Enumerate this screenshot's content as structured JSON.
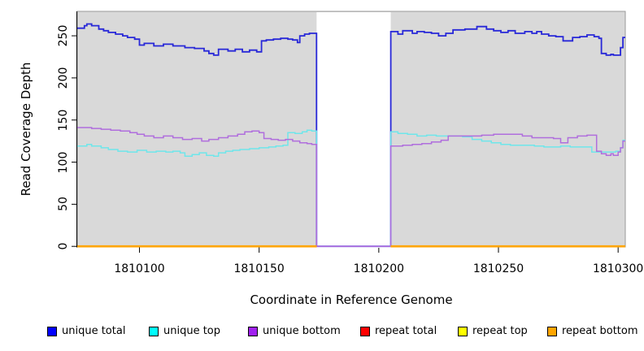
{
  "chart_data": {
    "type": "line",
    "subtype": "step-coverage",
    "xlabel": "Coordinate in Reference Genome",
    "ylabel": "Read Coverage Depth",
    "xlim": [
      1810074,
      1810303
    ],
    "ylim": [
      0,
      279
    ],
    "x_ticks": [
      1810100,
      1810150,
      1810200,
      1810250,
      1810300
    ],
    "y_ticks": [
      0,
      50,
      100,
      150,
      200,
      250
    ],
    "grid": false,
    "plot_background": "#d9d9d9",
    "plot_border_color": "#999999",
    "no_data_gap": {
      "from": 1810174,
      "to": 1810205,
      "fill": "#ffffff"
    },
    "legend_position": "bottom",
    "legend": [
      {
        "label": "unique total",
        "color": "#0000ff"
      },
      {
        "label": "unique top",
        "color": "#00ffff"
      },
      {
        "label": "unique bottom",
        "color": "#a020f0"
      },
      {
        "label": "repeat total",
        "color": "#ff0000"
      },
      {
        "label": "repeat top",
        "color": "#ffff00"
      },
      {
        "label": "repeat bottom",
        "color": "#ffa500"
      }
    ],
    "series": [
      {
        "name": "unique total",
        "color": "#2828d8",
        "width": 1.8,
        "step_points": [
          [
            1810074,
            259
          ],
          [
            1810077,
            262
          ],
          [
            1810078,
            264
          ],
          [
            1810080,
            262
          ],
          [
            1810083,
            258
          ],
          [
            1810085,
            256
          ],
          [
            1810087,
            254
          ],
          [
            1810090,
            252
          ],
          [
            1810093,
            250
          ],
          [
            1810095,
            248
          ],
          [
            1810098,
            246
          ],
          [
            1810100,
            239
          ],
          [
            1810102,
            241
          ],
          [
            1810106,
            238
          ],
          [
            1810110,
            240
          ],
          [
            1810114,
            238
          ],
          [
            1810119,
            236
          ],
          [
            1810123,
            235
          ],
          [
            1810127,
            232
          ],
          [
            1810129,
            229
          ],
          [
            1810131,
            227
          ],
          [
            1810133,
            234
          ],
          [
            1810137,
            232
          ],
          [
            1810140,
            234
          ],
          [
            1810143,
            231
          ],
          [
            1810146,
            233
          ],
          [
            1810149,
            231
          ],
          [
            1810151,
            244
          ],
          [
            1810153,
            245
          ],
          [
            1810156,
            246
          ],
          [
            1810159,
            247
          ],
          [
            1810162,
            246
          ],
          [
            1810164,
            245
          ],
          [
            1810166,
            242
          ],
          [
            1810167,
            250
          ],
          [
            1810169,
            252
          ],
          [
            1810171,
            253
          ],
          [
            1810174,
            0
          ],
          [
            1810205,
            255
          ],
          [
            1810208,
            252
          ],
          [
            1810210,
            256
          ],
          [
            1810214,
            253
          ],
          [
            1810216,
            255
          ],
          [
            1810219,
            254
          ],
          [
            1810222,
            253
          ],
          [
            1810225,
            250
          ],
          [
            1810228,
            253
          ],
          [
            1810231,
            257
          ],
          [
            1810236,
            258
          ],
          [
            1810241,
            261
          ],
          [
            1810245,
            258
          ],
          [
            1810248,
            256
          ],
          [
            1810251,
            254
          ],
          [
            1810254,
            256
          ],
          [
            1810257,
            253
          ],
          [
            1810261,
            255
          ],
          [
            1810264,
            253
          ],
          [
            1810266,
            255
          ],
          [
            1810268,
            252
          ],
          [
            1810271,
            250
          ],
          [
            1810274,
            249
          ],
          [
            1810277,
            244
          ],
          [
            1810281,
            248
          ],
          [
            1810284,
            249
          ],
          [
            1810287,
            251
          ],
          [
            1810290,
            249
          ],
          [
            1810292,
            247
          ],
          [
            1810293,
            229
          ],
          [
            1810295,
            227
          ],
          [
            1810297,
            228
          ],
          [
            1810298,
            227
          ],
          [
            1810301,
            236
          ],
          [
            1810302,
            248
          ]
        ]
      },
      {
        "name": "unique top",
        "color": "#6fe6ea",
        "width": 1.5,
        "step_points": [
          [
            1810074,
            119
          ],
          [
            1810078,
            121
          ],
          [
            1810080,
            119
          ],
          [
            1810084,
            117
          ],
          [
            1810087,
            115
          ],
          [
            1810091,
            113
          ],
          [
            1810095,
            112
          ],
          [
            1810099,
            114
          ],
          [
            1810103,
            112
          ],
          [
            1810107,
            113
          ],
          [
            1810111,
            112
          ],
          [
            1810114,
            113
          ],
          [
            1810117,
            111
          ],
          [
            1810119,
            107
          ],
          [
            1810122,
            109
          ],
          [
            1810125,
            111
          ],
          [
            1810128,
            108
          ],
          [
            1810131,
            107
          ],
          [
            1810133,
            111
          ],
          [
            1810136,
            113
          ],
          [
            1810139,
            114
          ],
          [
            1810142,
            115
          ],
          [
            1810146,
            116
          ],
          [
            1810150,
            117
          ],
          [
            1810154,
            118
          ],
          [
            1810157,
            119
          ],
          [
            1810160,
            120
          ],
          [
            1810162,
            135
          ],
          [
            1810165,
            134
          ],
          [
            1810168,
            136
          ],
          [
            1810170,
            138
          ],
          [
            1810172,
            137
          ],
          [
            1810174,
            0
          ],
          [
            1810205,
            136
          ],
          [
            1810208,
            134
          ],
          [
            1810212,
            133
          ],
          [
            1810216,
            131
          ],
          [
            1810220,
            132
          ],
          [
            1810224,
            131
          ],
          [
            1810230,
            131
          ],
          [
            1810235,
            130
          ],
          [
            1810239,
            127
          ],
          [
            1810243,
            125
          ],
          [
            1810247,
            123
          ],
          [
            1810251,
            121
          ],
          [
            1810255,
            120
          ],
          [
            1810261,
            120
          ],
          [
            1810265,
            119
          ],
          [
            1810269,
            118
          ],
          [
            1810273,
            118
          ],
          [
            1810276,
            119
          ],
          [
            1810280,
            118
          ],
          [
            1810285,
            118
          ],
          [
            1810289,
            112
          ],
          [
            1810294,
            112
          ],
          [
            1810299,
            113
          ],
          [
            1810301,
            117
          ],
          [
            1810302,
            126
          ]
        ]
      },
      {
        "name": "unique bottom",
        "color": "#b06edd",
        "width": 1.5,
        "step_points": [
          [
            1810074,
            141
          ],
          [
            1810080,
            140
          ],
          [
            1810084,
            139
          ],
          [
            1810088,
            138
          ],
          [
            1810092,
            137
          ],
          [
            1810096,
            135
          ],
          [
            1810099,
            133
          ],
          [
            1810102,
            131
          ],
          [
            1810106,
            129
          ],
          [
            1810110,
            131
          ],
          [
            1810114,
            129
          ],
          [
            1810118,
            127
          ],
          [
            1810122,
            128
          ],
          [
            1810126,
            125
          ],
          [
            1810129,
            127
          ],
          [
            1810133,
            129
          ],
          [
            1810137,
            131
          ],
          [
            1810141,
            133
          ],
          [
            1810144,
            136
          ],
          [
            1810147,
            137
          ],
          [
            1810150,
            135
          ],
          [
            1810152,
            128
          ],
          [
            1810155,
            127
          ],
          [
            1810158,
            126
          ],
          [
            1810161,
            127
          ],
          [
            1810164,
            125
          ],
          [
            1810167,
            123
          ],
          [
            1810170,
            122
          ],
          [
            1810172,
            121
          ],
          [
            1810174,
            0
          ],
          [
            1810205,
            119
          ],
          [
            1810210,
            120
          ],
          [
            1810214,
            121
          ],
          [
            1810218,
            122
          ],
          [
            1810222,
            124
          ],
          [
            1810226,
            126
          ],
          [
            1810229,
            131
          ],
          [
            1810234,
            131
          ],
          [
            1810239,
            131
          ],
          [
            1810243,
            132
          ],
          [
            1810248,
            133
          ],
          [
            1810253,
            133
          ],
          [
            1810257,
            133
          ],
          [
            1810260,
            131
          ],
          [
            1810264,
            129
          ],
          [
            1810269,
            129
          ],
          [
            1810273,
            128
          ],
          [
            1810276,
            123
          ],
          [
            1810279,
            129
          ],
          [
            1810283,
            131
          ],
          [
            1810287,
            132
          ],
          [
            1810291,
            113
          ],
          [
            1810293,
            110
          ],
          [
            1810295,
            108
          ],
          [
            1810297,
            110
          ],
          [
            1810298,
            108
          ],
          [
            1810300,
            112
          ],
          [
            1810301,
            117
          ],
          [
            1810302,
            125
          ]
        ]
      },
      {
        "name": "repeat total",
        "color": "#ff0000",
        "width": 2.4,
        "step_points": [
          [
            1810074,
            0
          ],
          [
            1810174,
            null
          ],
          [
            1810205,
            0
          ]
        ]
      },
      {
        "name": "repeat top",
        "color": "#ffff00",
        "width": 2.4,
        "step_points": [
          [
            1810074,
            0
          ],
          [
            1810174,
            null
          ],
          [
            1810205,
            0
          ]
        ]
      },
      {
        "name": "repeat bottom",
        "color": "#ffa500",
        "width": 2.6,
        "step_points": [
          [
            1810074,
            0
          ],
          [
            1810174,
            null
          ],
          [
            1810205,
            0
          ]
        ]
      }
    ]
  }
}
